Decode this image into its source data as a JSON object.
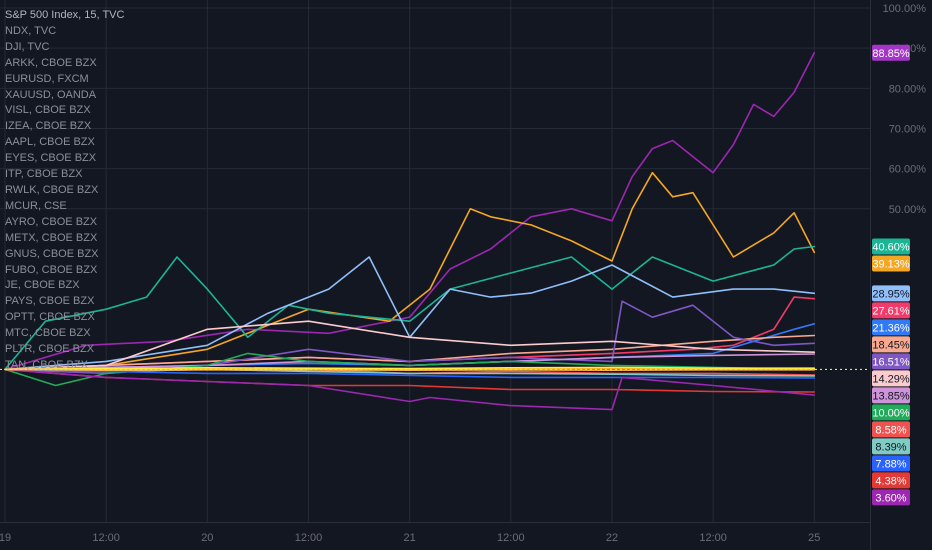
{
  "window": {
    "legend": [
      "S&P 500 Index, 15, TVC",
      "NDX, TVC",
      "DJI, TVC",
      "ARKK, CBOE BZX",
      "EURUSD, FXCM",
      "XAUUSD, OANDA",
      "VISL, CBOE BZX",
      "IZEA, CBOE BZX",
      "AAPL, CBOE BZX",
      "EYES, CBOE BZX",
      "ITP, CBOE BZX",
      "RWLK, CBOE BZX",
      "MCUR, CSE",
      "AYRO, CBOE BZX",
      "METX, CBOE BZX",
      "GNUS, CBOE BZX",
      "FUBO, CBOE BZX",
      "JE, CBOE BZX",
      "PAYS, CBOE BZX",
      "OPTT, CBOE BZX",
      "MTC, CBOE BZX",
      "PLTR, CBOE BZX",
      "TAN, CBOE BZX"
    ]
  },
  "chart_data": {
    "type": "line",
    "y_unit": "%",
    "y_ticks": [
      "100.00%",
      "90.00%",
      "80.00%",
      "70.00%",
      "60.00%",
      "50.00%"
    ],
    "y_tick_values": [
      100,
      90,
      80,
      70,
      60,
      50
    ],
    "ylim": [
      -28,
      102
    ],
    "x_ticks": [
      "19",
      "12:00",
      "20",
      "12:00",
      "21",
      "12:00",
      "22",
      "12:00",
      "25"
    ],
    "x_tick_values": [
      0,
      0.5,
      1,
      1.5,
      2,
      2.5,
      3,
      3.5,
      4
    ],
    "xlim": [
      0,
      4.3
    ],
    "grid": true,
    "legend_position": "top-left",
    "reference_line": {
      "value": 10.0,
      "color": "#f0e442"
    },
    "last_value_labels": [
      {
        "text": "88.85%",
        "value": 88.85,
        "color": "#a535c8"
      },
      {
        "text": "40.60%",
        "value": 40.6,
        "color": "#1bb595"
      },
      {
        "text": "39.13%",
        "value": 39.13,
        "color": "#f5a623"
      },
      {
        "text": "28.95%",
        "value": 28.95,
        "color": "#90bff9"
      },
      {
        "text": "27.61%",
        "value": 27.61,
        "color": "#f23b6a"
      },
      {
        "text": "21.36%",
        "value": 21.36,
        "color": "#3179f5"
      },
      {
        "text": "18.45%",
        "value": 18.45,
        "color": "#f8a98f"
      },
      {
        "text": "16.51%",
        "value": 16.51,
        "color": "#7e57c2"
      },
      {
        "text": "14.29%",
        "value": 14.29,
        "color": "#fccbcd"
      },
      {
        "text": "13.85%",
        "value": 13.85,
        "color": "#ce93d8"
      },
      {
        "text": "10.00%",
        "value": 10.0,
        "color": "#22ab5a"
      },
      {
        "text": "8.58%",
        "value": 8.58,
        "color": "#ef5350"
      },
      {
        "text": "8.39%",
        "value": 8.39,
        "color": "#80cbc4"
      },
      {
        "text": "7.88%",
        "value": 7.88,
        "color": "#2962ff"
      },
      {
        "text": "4.38%",
        "value": 4.38,
        "color": "#e53935"
      },
      {
        "text": "3.60%",
        "value": 3.6,
        "color": "#9c27b0"
      }
    ],
    "series": [
      {
        "color": "#9c27b0",
        "x": [
          0,
          0.4,
          0.8,
          1.2,
          1.6,
          2.0,
          2.2,
          2.4,
          2.6,
          2.8,
          3.0,
          3.1,
          3.2,
          3.3,
          3.5,
          3.6,
          3.7,
          3.8,
          3.9,
          4.0
        ],
        "y": [
          10,
          16,
          17,
          20,
          19,
          23,
          35,
          40,
          48,
          50,
          47,
          58,
          65,
          67,
          59,
          66,
          76,
          73,
          79,
          88.85
        ]
      },
      {
        "color": "#f5a623",
        "x": [
          0,
          0.5,
          1.0,
          1.5,
          1.9,
          2.1,
          2.3,
          2.4,
          2.6,
          2.8,
          3.0,
          3.1,
          3.2,
          3.3,
          3.4,
          3.6,
          3.8,
          3.9,
          4.0
        ],
        "y": [
          10,
          11,
          15,
          25,
          22,
          30,
          50,
          48,
          46,
          42,
          37,
          50,
          59,
          53,
          54,
          38,
          44,
          49,
          39.13
        ]
      },
      {
        "color": "#1bb595",
        "x": [
          0,
          0.2,
          0.5,
          0.7,
          0.85,
          1.0,
          1.2,
          1.4,
          1.6,
          2.0,
          2.2,
          2.5,
          2.8,
          3.0,
          3.2,
          3.5,
          3.8,
          3.9,
          4.0
        ],
        "y": [
          10,
          22,
          25,
          28,
          38,
          30,
          18,
          26,
          24,
          22,
          30,
          34,
          38,
          30,
          38,
          32,
          36,
          40,
          40.6
        ]
      },
      {
        "color": "#90bff9",
        "x": [
          0,
          0.5,
          1.0,
          1.3,
          1.6,
          1.8,
          2.0,
          2.2,
          2.4,
          2.6,
          2.8,
          3.0,
          3.3,
          3.6,
          3.8,
          4.0
        ],
        "y": [
          10,
          12,
          16,
          24,
          30,
          38,
          18,
          30,
          28,
          29,
          32,
          36,
          28,
          30,
          30,
          28.95
        ]
      },
      {
        "color": "#f23b6a",
        "x": [
          0,
          0.5,
          1.0,
          1.5,
          2.0,
          2.5,
          3.0,
          3.4,
          3.6,
          3.8,
          3.9,
          4.0
        ],
        "y": [
          10,
          11,
          12,
          13,
          12,
          13,
          14,
          15,
          16,
          20,
          28,
          27.61
        ]
      },
      {
        "color": "#3179f5",
        "x": [
          0,
          0.5,
          1.0,
          1.5,
          2.0,
          2.5,
          3.0,
          3.5,
          3.7,
          3.9,
          4.0
        ],
        "y": [
          10,
          10.5,
          11,
          11.5,
          11,
          12,
          13,
          14,
          17,
          20,
          21.36
        ]
      },
      {
        "color": "#f8a98f",
        "x": [
          0,
          0.5,
          1.0,
          1.5,
          2.0,
          2.5,
          3.0,
          3.5,
          3.8,
          4.0
        ],
        "y": [
          10,
          11,
          12,
          13,
          12,
          14,
          15,
          17,
          18,
          18.45
        ]
      },
      {
        "color": "#7e57c2",
        "x": [
          0,
          0.5,
          1.0,
          1.5,
          2.0,
          2.5,
          3.0,
          3.05,
          3.2,
          3.4,
          3.6,
          3.8,
          4.0
        ],
        "y": [
          10,
          9,
          11,
          15,
          12,
          13,
          12,
          27,
          23,
          26,
          18,
          16,
          16.51
        ]
      },
      {
        "color": "#fccbcd",
        "x": [
          0,
          0.5,
          1.0,
          1.5,
          2.0,
          2.5,
          3.0,
          3.5,
          4.0
        ],
        "y": [
          10,
          11,
          20,
          22,
          18,
          16,
          17,
          15,
          14.29
        ]
      },
      {
        "color": "#ce93d8",
        "x": [
          0,
          0.5,
          1.0,
          1.5,
          2.0,
          2.5,
          3.0,
          3.5,
          4.0
        ],
        "y": [
          10,
          10.5,
          11,
          12,
          11,
          12,
          13,
          13.5,
          13.85
        ]
      },
      {
        "color": "#22ab5a",
        "x": [
          0,
          0.25,
          0.5,
          1.0,
          1.2,
          1.5,
          2.0,
          2.5,
          3.0,
          3.5,
          4.0
        ],
        "y": [
          10,
          6,
          9,
          11,
          14,
          12,
          11,
          12,
          11,
          10.5,
          10.0
        ]
      },
      {
        "color": "#ef5350",
        "x": [
          0,
          0.5,
          1.0,
          1.5,
          2.0,
          2.5,
          3.0,
          3.5,
          4.0
        ],
        "y": [
          10,
          9.5,
          10,
          10,
          9,
          9.5,
          9,
          9,
          8.58
        ]
      },
      {
        "color": "#80cbc4",
        "x": [
          0,
          0.5,
          1.0,
          1.5,
          2.0,
          2.5,
          3.0,
          3.5,
          4.0
        ],
        "y": [
          10,
          9.5,
          10,
          9.5,
          9,
          9,
          8.8,
          8.5,
          8.39
        ]
      },
      {
        "color": "#2962ff",
        "x": [
          0,
          0.5,
          1.0,
          1.5,
          2.0,
          2.5,
          3.0,
          3.5,
          4.0
        ],
        "y": [
          10,
          9.5,
          9,
          9,
          8.5,
          8,
          8,
          8,
          7.88
        ]
      },
      {
        "color": "#e53935",
        "x": [
          0,
          0.5,
          1.0,
          1.5,
          2.0,
          2.5,
          3.0,
          3.5,
          4.0
        ],
        "y": [
          10,
          8,
          7,
          6,
          6,
          5,
          5,
          4.5,
          4.38
        ]
      },
      {
        "color": "#9c27b0",
        "x": [
          0,
          0.5,
          1.0,
          1.5,
          2.0,
          2.1,
          2.5,
          3.0,
          3.05,
          3.5,
          4.0
        ],
        "y": [
          10,
          8,
          7,
          6,
          2,
          3,
          1,
          0,
          8,
          6,
          3.6
        ]
      },
      {
        "color": "#ff9800",
        "x": [
          0,
          0.5,
          1.0,
          1.5,
          2.0,
          2.5,
          3.0,
          3.5,
          4.0
        ],
        "y": [
          10,
          10.1,
          10.2,
          10.2,
          10.1,
          10.2,
          10.3,
          10.2,
          10.2
        ]
      },
      {
        "color": "#ffeb3b",
        "x": [
          0,
          0.5,
          1.0,
          1.5,
          2.0,
          2.5,
          3.0,
          3.5,
          4.0
        ],
        "y": [
          10,
          10.2,
          10.4,
          10.3,
          10.2,
          10.4,
          10.5,
          10.3,
          10.3
        ]
      },
      {
        "color": "#ffb74d",
        "x": [
          0,
          0.5,
          1.0,
          1.5,
          2.0,
          2.5,
          3.0,
          3.5,
          4.0
        ],
        "y": [
          10,
          9.8,
          9.9,
          9.9,
          9.8,
          9.9,
          9.8,
          9.9,
          9.9
        ]
      }
    ]
  }
}
